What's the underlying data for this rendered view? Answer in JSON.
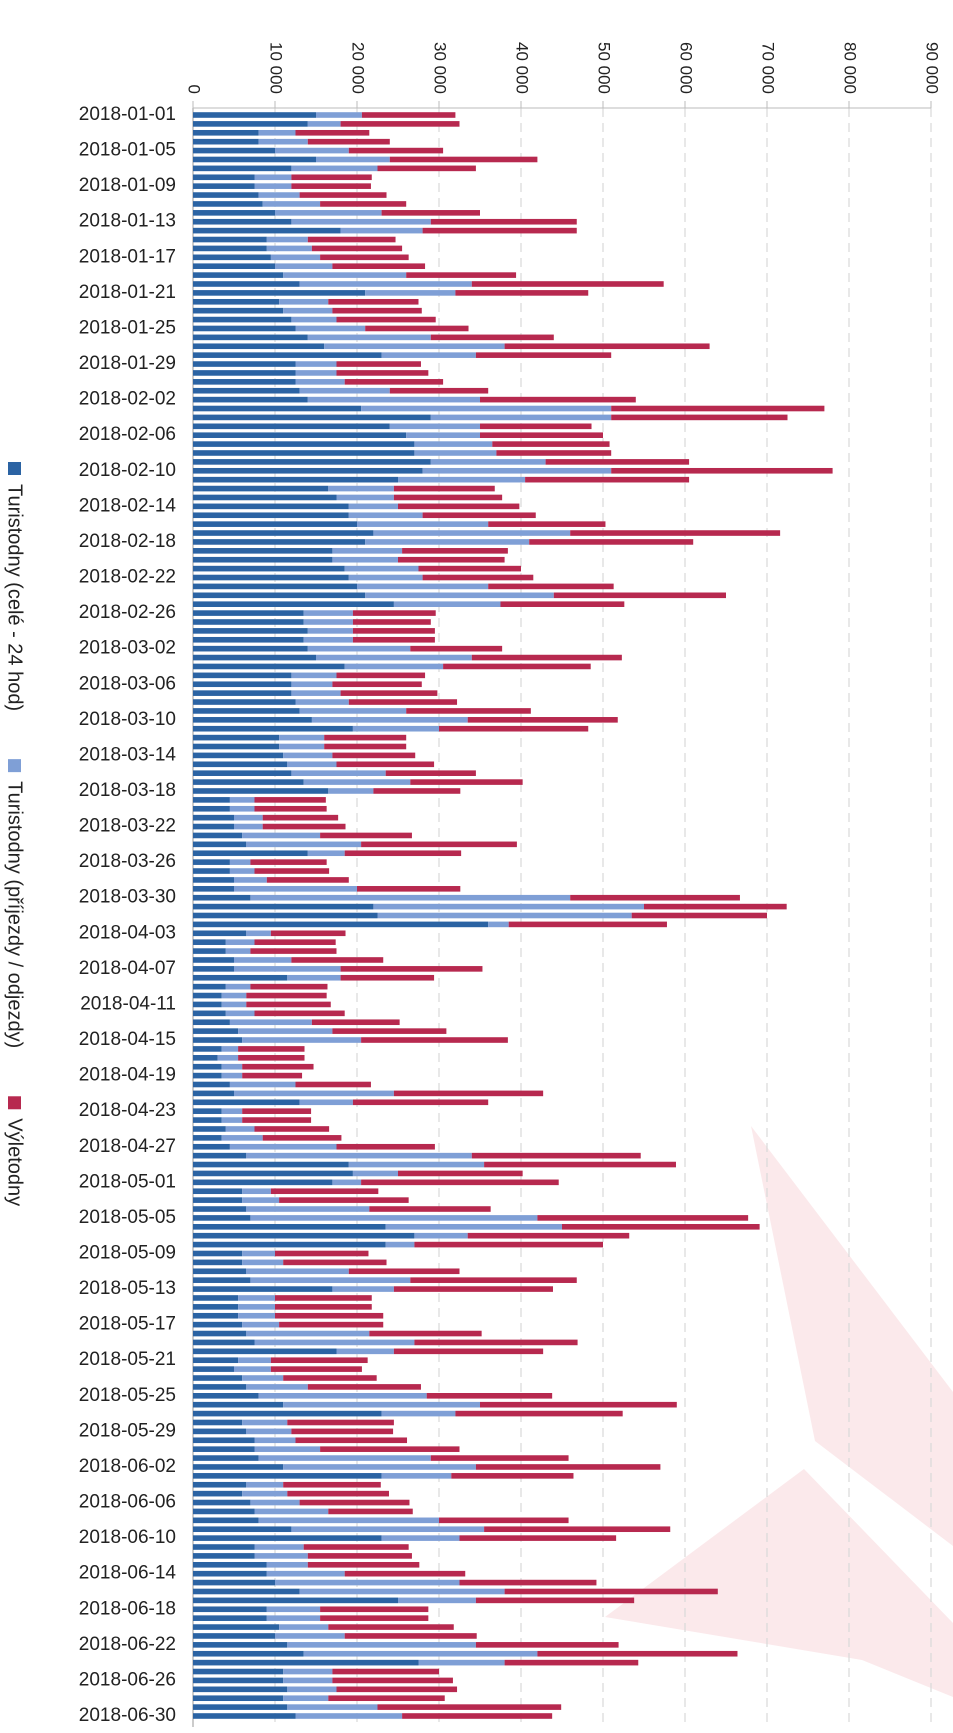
{
  "chart_data": {
    "type": "bar",
    "orientation": "horizontal",
    "stacked": true,
    "categories": [
      "2018-01-01",
      null,
      null,
      null,
      "2018-01-05",
      null,
      null,
      null,
      "2018-01-09",
      null,
      null,
      null,
      "2018-01-13",
      null,
      null,
      null,
      "2018-01-17",
      null,
      null,
      null,
      "2018-01-21",
      null,
      null,
      null,
      "2018-01-25",
      null,
      null,
      null,
      "2018-01-29",
      null,
      null,
      null,
      "2018-02-02",
      null,
      null,
      null,
      "2018-02-06",
      null,
      null,
      null,
      "2018-02-10",
      null,
      null,
      null,
      "2018-02-14",
      null,
      null,
      null,
      "2018-02-18",
      null,
      null,
      null,
      "2018-02-22",
      null,
      null,
      null,
      "2018-02-26",
      null,
      null,
      null,
      "2018-03-02",
      null,
      null,
      null,
      "2018-03-06",
      null,
      null,
      null,
      "2018-03-10",
      null,
      null,
      null,
      "2018-03-14",
      null,
      null,
      null,
      "2018-03-18",
      null,
      null,
      null,
      "2018-03-22",
      null,
      null,
      null,
      "2018-03-26",
      null,
      null,
      null,
      "2018-03-30",
      null,
      null,
      null,
      "2018-04-03",
      null,
      null,
      null,
      "2018-04-07",
      null,
      null,
      null,
      "2018-04-11",
      null,
      null,
      null,
      "2018-04-15",
      null,
      null,
      null,
      "2018-04-19",
      null,
      null,
      null,
      "2018-04-23",
      null,
      null,
      null,
      "2018-04-27",
      null,
      null,
      null,
      "2018-05-01",
      null,
      null,
      null,
      "2018-05-05",
      null,
      null,
      null,
      "2018-05-09",
      null,
      null,
      null,
      "2018-05-13",
      null,
      null,
      null,
      "2018-05-17",
      null,
      null,
      null,
      "2018-05-21",
      null,
      null,
      null,
      "2018-05-25",
      null,
      null,
      null,
      "2018-05-29",
      null,
      null,
      null,
      "2018-06-02",
      null,
      null,
      null,
      "2018-06-06",
      null,
      null,
      null,
      "2018-06-10",
      null,
      null,
      null,
      "2018-06-14",
      null,
      null,
      null,
      "2018-06-18",
      null,
      null,
      null,
      "2018-06-22",
      null,
      null,
      null,
      "2018-06-26",
      null,
      null,
      null,
      "2018-06-30"
    ],
    "series": [
      {
        "name": "Turistodny (celé - 24 hod)",
        "color": "#2b63a3",
        "values": [
          15000,
          14000,
          8000,
          8000,
          10000,
          15000,
          12000,
          7500,
          7500,
          8000,
          8500,
          10000,
          12000,
          18000,
          9000,
          9000,
          9500,
          10000,
          11000,
          13000,
          21000,
          10500,
          11000,
          12000,
          12500,
          14000,
          16000,
          23000,
          12500,
          12500,
          12500,
          13000,
          14000,
          20500,
          29000,
          24000,
          26000,
          27000,
          27000,
          29000,
          28000,
          25000,
          16500,
          17500,
          19000,
          19000,
          20000,
          22000,
          21000,
          17000,
          17000,
          18500,
          19000,
          20000,
          21000,
          24500,
          13500,
          13500,
          14000,
          13500,
          14000,
          15000,
          18500,
          12000,
          12000,
          12000,
          12500,
          13000,
          14500,
          19500,
          10500,
          10500,
          11000,
          11500,
          12000,
          13500,
          16500,
          4500,
          4500,
          5000,
          5000,
          6000,
          6500,
          14000,
          4500,
          4500,
          5000,
          5000,
          7000,
          22000,
          22500,
          36000,
          6500,
          4000,
          4000,
          5000,
          5000,
          11500,
          4000,
          3500,
          3500,
          4000,
          4500,
          5500,
          6000,
          3500,
          3000,
          3500,
          3500,
          4500,
          5000,
          13000,
          3500,
          3500,
          4000,
          3500,
          4500,
          6500,
          19000,
          19500,
          17000,
          6000,
          6000,
          6500,
          7000,
          23500,
          27000,
          23500,
          6000,
          6000,
          6500,
          7000,
          17000,
          5500,
          5500,
          5500,
          6000,
          6500,
          7500,
          17500,
          5500,
          5000,
          6000,
          6500,
          8000,
          11000,
          23000,
          6000,
          6500,
          7500,
          7500,
          8000,
          11000,
          23000,
          6500,
          6000,
          7000,
          7500,
          8000,
          12000,
          23000,
          7500,
          7500,
          9000,
          9000,
          10000,
          13000,
          25000,
          9000,
          9000,
          10500,
          10000,
          11500,
          13500,
          27500,
          11000,
          11000,
          11500,
          11000,
          11500,
          12500
        ]
      },
      {
        "name": "Turistodny (příjezdy / odjezdy)",
        "color": "#7f9fd6",
        "values": [
          5600,
          4000,
          4500,
          6000,
          9000,
          9000,
          10500,
          4500,
          4500,
          5000,
          7000,
          13000,
          17000,
          10000,
          5000,
          5500,
          6000,
          7000,
          15000,
          21000,
          11000,
          6000,
          6000,
          5500,
          8500,
          15000,
          22000,
          11500,
          5000,
          5000,
          6000,
          11000,
          21000,
          30500,
          22000,
          11000,
          9000,
          9500,
          10000,
          14000,
          23000,
          15500,
          8000,
          7000,
          6000,
          9000,
          16000,
          24000,
          20000,
          8500,
          8000,
          9000,
          9000,
          16000,
          23000,
          13000,
          6000,
          6000,
          5500,
          6000,
          12500,
          19000,
          12000,
          5500,
          5000,
          6000,
          6500,
          13000,
          19000,
          10500,
          5500,
          5500,
          6000,
          6000,
          11500,
          13000,
          5500,
          3000,
          3000,
          3500,
          3500,
          9500,
          14000,
          4500,
          2500,
          3000,
          4000,
          15000,
          39000,
          33000,
          31000,
          2500,
          3000,
          3500,
          3000,
          7000,
          13000,
          6500,
          3000,
          3000,
          3000,
          3500,
          10000,
          11500,
          14500,
          2000,
          2500,
          2500,
          2500,
          8000,
          19500,
          6500,
          2500,
          2500,
          3500,
          5000,
          13000,
          27500,
          16500,
          5500,
          3500,
          3500,
          4500,
          15000,
          35000,
          21500,
          6500,
          3500,
          4000,
          5000,
          12500,
          19500,
          7500,
          4500,
          4500,
          4500,
          4500,
          15000,
          19500,
          7000,
          4000,
          4500,
          5000,
          7500,
          20500,
          24000,
          9000,
          5500,
          5500,
          5000,
          8000,
          21000,
          23500,
          8500,
          4500,
          5500,
          6000,
          9000,
          22000,
          23500,
          9500,
          6000,
          6500,
          5000,
          9500,
          22500,
          25000,
          9500,
          6500,
          6500,
          6000,
          8500,
          23000,
          28500,
          10500,
          6000,
          6000,
          6000,
          5500,
          11000,
          13000
        ]
      },
      {
        "name": "Výletodny",
        "color": "#b7294f",
        "values": [
          11400,
          14500,
          9000,
          10000,
          11500,
          18000,
          12000,
          9800,
          9700,
          10600,
          10500,
          12000,
          17800,
          18800,
          10700,
          11000,
          10800,
          11300,
          13400,
          23400,
          16200,
          11000,
          10900,
          12100,
          12600,
          15000,
          25000,
          16500,
          10300,
          11200,
          12000,
          12000,
          19000,
          26000,
          21500,
          13600,
          15000,
          14300,
          14000,
          17500,
          27000,
          20000,
          12300,
          13200,
          14800,
          13800,
          14300,
          25600,
          20000,
          12900,
          13000,
          12500,
          13500,
          15300,
          21000,
          15100,
          10100,
          9500,
          10000,
          10000,
          11200,
          18300,
          18000,
          10800,
          10900,
          11800,
          13200,
          15200,
          18300,
          18200,
          10000,
          10000,
          10100,
          11900,
          11000,
          13700,
          10600,
          8700,
          8800,
          9200,
          10100,
          11200,
          19000,
          14200,
          9300,
          9100,
          10000,
          12600,
          20700,
          17400,
          16500,
          19300,
          9100,
          9900,
          10500,
          11200,
          17300,
          11400,
          9400,
          9800,
          10300,
          11000,
          10700,
          13900,
          17900,
          8100,
          8100,
          8700,
          7300,
          9200,
          18200,
          16500,
          8400,
          8400,
          9100,
          9600,
          12000,
          20600,
          23400,
          15200,
          24100,
          13100,
          15800,
          14800,
          25700,
          24100,
          19700,
          23000,
          11400,
          12600,
          13500,
          20300,
          19400,
          11800,
          11800,
          13200,
          12700,
          13700,
          19900,
          18200,
          11800,
          11100,
          11400,
          13800,
          15300,
          24000,
          20400,
          13000,
          12400,
          13600,
          17000,
          16800,
          22500,
          14900,
          11900,
          12400,
          13400,
          10300,
          15800,
          22700,
          19100,
          12800,
          12700,
          13600,
          14700,
          16700,
          26000,
          19300,
          13200,
          13200,
          15300,
          16100,
          17400,
          24400,
          16300,
          13000,
          14700,
          14700,
          14200,
          22400,
          18300
        ]
      }
    ],
    "xlim": [
      0,
      90000
    ],
    "xticks": [
      0,
      {
        "value": 10000,
        "label": "10 000"
      },
      {
        "value": 20000,
        "label": "20 000"
      },
      {
        "value": 30000,
        "label": "30 000"
      },
      {
        "value": 40000,
        "label": "40 000"
      },
      {
        "value": 50000,
        "label": "50 000"
      },
      {
        "value": 60000,
        "label": "60 000"
      },
      {
        "value": 70000,
        "label": "70 000"
      },
      {
        "value": 80000,
        "label": "80 000"
      },
      {
        "value": 90000,
        "label": "90 000"
      }
    ],
    "grid": true,
    "legend": "left"
  }
}
